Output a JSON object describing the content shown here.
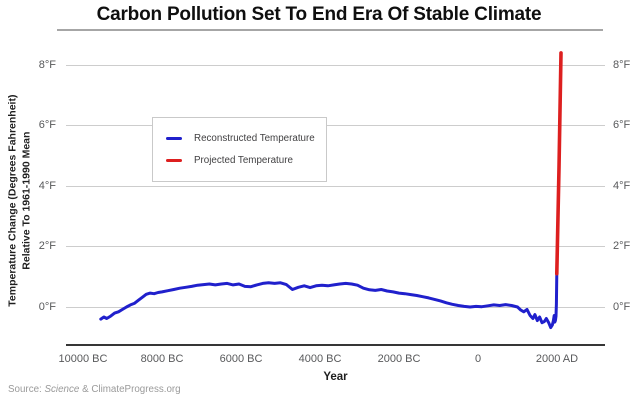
{
  "title": "Carbon Pollution Set To End Era Of Stable Climate",
  "y_axis": {
    "title_line1": "Temperature Change (Degrees Fahrenheit)",
    "title_line2": "Relative To 1961-1990 Mean",
    "tick_labels": [
      "8°F",
      "6°F",
      "4°F",
      "2°F",
      "0°F"
    ],
    "tick_values": [
      8,
      6,
      4,
      2,
      0
    ]
  },
  "x_axis": {
    "title": "Year",
    "tick_labels": [
      "10000 BC",
      "8000 BC",
      "6000 BC",
      "4000 BC",
      "2000 BC",
      "0",
      "2000 AD"
    ],
    "tick_values": [
      -10000,
      -8000,
      -6000,
      -4000,
      -2000,
      0,
      2000
    ]
  },
  "legend": {
    "items": [
      {
        "label": "Reconstructed Temperature",
        "color": "#2020cc"
      },
      {
        "label": "Projected Temperature",
        "color": "#dd1f1f"
      }
    ]
  },
  "source": {
    "prefix": "Source: ",
    "journal": "Science",
    "suffix": " & ClimateProgress.org"
  },
  "colors": {
    "reconstructed_line": "#2020cc",
    "projected_line": "#dd1f1f",
    "gridline": "#cdcdcd",
    "axis_line": "#363636",
    "tick_text": "#58595b",
    "source_text": "#9a9a9a"
  },
  "chart_data": {
    "type": "line",
    "title": "Carbon Pollution Set To End Era Of Stable Climate",
    "xlabel": "Year",
    "ylabel": "Temperature Change (Degrees Fahrenheit) Relative To 1961-1990 Mean",
    "x_tick_years": [
      -10000,
      -8000,
      -6000,
      -4000,
      -2000,
      0,
      2000
    ],
    "ylim": [
      -1.3,
      8.7
    ],
    "y_ticks": [
      0,
      2,
      4,
      6,
      8
    ],
    "grid": "horizontal-only",
    "legend_position": "upper-left-inside",
    "series": [
      {
        "name": "Reconstructed Temperature",
        "color": "#2020cc",
        "points": [
          [
            -9550,
            -0.4
          ],
          [
            -9470,
            -0.33
          ],
          [
            -9400,
            -0.38
          ],
          [
            -9300,
            -0.3
          ],
          [
            -9200,
            -0.2
          ],
          [
            -9100,
            -0.16
          ],
          [
            -9000,
            -0.08
          ],
          [
            -8900,
            0.0
          ],
          [
            -8800,
            0.07
          ],
          [
            -8700,
            0.12
          ],
          [
            -8600,
            0.22
          ],
          [
            -8500,
            0.32
          ],
          [
            -8400,
            0.42
          ],
          [
            -8300,
            0.46
          ],
          [
            -8200,
            0.44
          ],
          [
            -8100,
            0.48
          ],
          [
            -8000,
            0.5
          ],
          [
            -7850,
            0.54
          ],
          [
            -7700,
            0.58
          ],
          [
            -7550,
            0.62
          ],
          [
            -7400,
            0.65
          ],
          [
            -7250,
            0.68
          ],
          [
            -7100,
            0.72
          ],
          [
            -6950,
            0.74
          ],
          [
            -6800,
            0.76
          ],
          [
            -6650,
            0.73
          ],
          [
            -6500,
            0.76
          ],
          [
            -6350,
            0.78
          ],
          [
            -6200,
            0.73
          ],
          [
            -6050,
            0.76
          ],
          [
            -5900,
            0.68
          ],
          [
            -5750,
            0.67
          ],
          [
            -5600,
            0.73
          ],
          [
            -5450,
            0.78
          ],
          [
            -5300,
            0.8
          ],
          [
            -5150,
            0.78
          ],
          [
            -5000,
            0.8
          ],
          [
            -4850,
            0.74
          ],
          [
            -4700,
            0.58
          ],
          [
            -4550,
            0.65
          ],
          [
            -4400,
            0.7
          ],
          [
            -4250,
            0.64
          ],
          [
            -4100,
            0.7
          ],
          [
            -3950,
            0.72
          ],
          [
            -3800,
            0.7
          ],
          [
            -3650,
            0.73
          ],
          [
            -3500,
            0.76
          ],
          [
            -3350,
            0.78
          ],
          [
            -3200,
            0.76
          ],
          [
            -3050,
            0.72
          ],
          [
            -2900,
            0.62
          ],
          [
            -2750,
            0.57
          ],
          [
            -2600,
            0.55
          ],
          [
            -2450,
            0.58
          ],
          [
            -2300,
            0.53
          ],
          [
            -2150,
            0.5
          ],
          [
            -2000,
            0.46
          ],
          [
            -1850,
            0.44
          ],
          [
            -1700,
            0.41
          ],
          [
            -1550,
            0.38
          ],
          [
            -1400,
            0.34
          ],
          [
            -1250,
            0.3
          ],
          [
            -1100,
            0.25
          ],
          [
            -950,
            0.2
          ],
          [
            -800,
            0.14
          ],
          [
            -650,
            0.09
          ],
          [
            -500,
            0.05
          ],
          [
            -350,
            0.02
          ],
          [
            -200,
            0.0
          ],
          [
            -50,
            0.02
          ],
          [
            100,
            0.01
          ],
          [
            250,
            0.04
          ],
          [
            400,
            0.07
          ],
          [
            550,
            0.05
          ],
          [
            700,
            0.08
          ],
          [
            850,
            0.05
          ],
          [
            1000,
            0.0
          ],
          [
            1080,
            -0.1
          ],
          [
            1160,
            -0.16
          ],
          [
            1240,
            -0.08
          ],
          [
            1320,
            -0.28
          ],
          [
            1390,
            -0.38
          ],
          [
            1440,
            -0.25
          ],
          [
            1500,
            -0.45
          ],
          [
            1560,
            -0.33
          ],
          [
            1620,
            -0.52
          ],
          [
            1680,
            -0.48
          ],
          [
            1730,
            -0.38
          ],
          [
            1790,
            -0.52
          ],
          [
            1840,
            -0.68
          ],
          [
            1880,
            -0.6
          ],
          [
            1910,
            -0.45
          ],
          [
            1930,
            -0.28
          ],
          [
            1945,
            -0.5
          ],
          [
            1960,
            -0.45
          ],
          [
            1975,
            -0.3
          ],
          [
            1985,
            0.1
          ],
          [
            1995,
            1.1
          ]
        ]
      },
      {
        "name": "Projected Temperature",
        "color": "#dd1f1f",
        "points": [
          [
            1995,
            1.1
          ],
          [
            2050,
            4.6
          ],
          [
            2100,
            8.4
          ]
        ]
      }
    ]
  }
}
